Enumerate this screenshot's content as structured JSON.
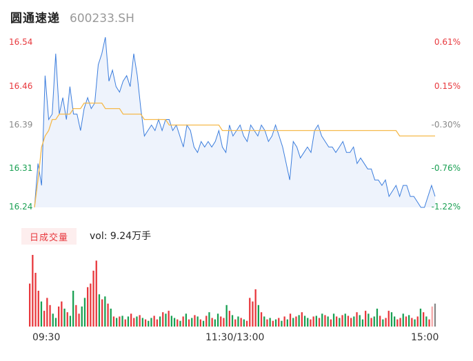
{
  "header": {
    "name": "圆通速递",
    "code": "600233.SH"
  },
  "colors": {
    "up": "#e8383d",
    "down": "#1aa053",
    "neutral": "#888888",
    "price_line": "#3b7ddd",
    "avg_line": "#f5b94a"
  },
  "chart_data": [
    {
      "type": "line",
      "title": "",
      "ylim": [
        16.24,
        16.54
      ],
      "y_ticks": [
        "16.54",
        "16.46",
        "16.39",
        "16.31",
        "16.24"
      ],
      "y_tick_values": [
        16.54,
        16.46,
        16.39,
        16.31,
        16.24
      ],
      "pct_ticks": [
        "0.61%",
        "0.15%",
        "-0.30%",
        "-0.76%",
        "-1.22%"
      ],
      "x_ticks": [
        "09:30",
        "11:30/13:00",
        "15:00"
      ],
      "series": [
        {
          "role": "price",
          "values": [
            16.24,
            16.32,
            16.28,
            16.48,
            16.4,
            16.41,
            16.52,
            16.41,
            16.44,
            16.4,
            16.46,
            16.41,
            16.41,
            16.38,
            16.42,
            16.44,
            16.42,
            16.43,
            16.5,
            16.52,
            16.55,
            16.47,
            16.49,
            16.46,
            16.45,
            16.47,
            16.48,
            16.46,
            16.52,
            16.48,
            16.42,
            16.37,
            16.38,
            16.39,
            16.38,
            16.4,
            16.38,
            16.4,
            16.4,
            16.38,
            16.39,
            16.37,
            16.35,
            16.39,
            16.38,
            16.35,
            16.34,
            16.36,
            16.35,
            16.36,
            16.35,
            16.36,
            16.38,
            16.35,
            16.34,
            16.39,
            16.37,
            16.38,
            16.39,
            16.37,
            16.36,
            16.39,
            16.38,
            16.37,
            16.39,
            16.38,
            16.36,
            16.37,
            16.39,
            16.37,
            16.35,
            16.32,
            16.29,
            16.36,
            16.35,
            16.33,
            16.34,
            16.35,
            16.34,
            16.38,
            16.39,
            16.37,
            16.36,
            16.35,
            16.35,
            16.34,
            16.35,
            16.36,
            16.34,
            16.34,
            16.35,
            16.32,
            16.33,
            16.32,
            16.31,
            16.31,
            16.29,
            16.29,
            16.28,
            16.29,
            16.26,
            16.27,
            16.28,
            16.26,
            16.28,
            16.28,
            16.26,
            16.26,
            16.25,
            16.24,
            16.24,
            16.26,
            16.28,
            16.26
          ]
        },
        {
          "role": "average",
          "values": [
            16.24,
            16.29,
            16.35,
            16.37,
            16.38,
            16.4,
            16.4,
            16.41,
            16.41,
            16.41,
            16.41,
            16.42,
            16.42,
            16.42,
            16.43,
            16.43,
            16.43,
            16.43,
            16.43,
            16.43,
            16.42,
            16.42,
            16.42,
            16.42,
            16.42,
            16.41,
            16.41,
            16.41,
            16.41,
            16.41,
            16.41,
            16.4,
            16.4,
            16.4,
            16.4,
            16.4,
            16.4,
            16.4,
            16.39,
            16.39,
            16.39,
            16.39,
            16.39,
            16.39,
            16.39,
            16.39,
            16.39,
            16.39,
            16.39,
            16.39,
            16.39,
            16.39,
            16.39,
            16.38,
            16.38,
            16.38,
            16.38,
            16.38,
            16.38,
            16.38,
            16.38,
            16.38,
            16.38,
            16.38,
            16.38,
            16.38,
            16.38,
            16.38,
            16.38,
            16.38,
            16.38,
            16.38,
            16.38,
            16.38,
            16.38,
            16.38,
            16.38,
            16.38,
            16.38,
            16.38,
            16.38,
            16.38,
            16.38,
            16.38,
            16.38,
            16.38,
            16.38,
            16.38,
            16.38,
            16.38,
            16.38,
            16.38,
            16.38,
            16.38,
            16.38,
            16.38,
            16.38,
            16.38,
            16.38,
            16.38,
            16.38,
            16.38,
            16.38,
            16.37,
            16.37,
            16.37,
            16.37,
            16.37,
            16.37,
            16.37,
            16.37,
            16.37,
            16.37,
            16.37
          ]
        }
      ]
    },
    {
      "type": "bar",
      "title": "日成交量",
      "ylabel": "",
      "values": [
        60,
        100,
        75,
        50,
        35,
        22,
        40,
        30,
        18,
        12,
        28,
        35,
        25,
        20,
        15,
        50,
        30,
        18,
        28,
        40,
        55,
        60,
        78,
        92,
        45,
        38,
        42,
        32,
        25,
        14,
        12,
        14,
        15,
        10,
        14,
        18,
        12,
        14,
        16,
        12,
        10,
        8,
        12,
        15,
        10,
        14,
        20,
        18,
        22,
        15,
        12,
        10,
        8,
        14,
        18,
        10,
        12,
        16,
        14,
        10,
        8,
        15,
        20,
        12,
        10,
        18,
        14,
        12,
        30,
        22,
        16,
        10,
        14,
        12,
        10,
        8,
        40,
        35,
        52,
        30,
        20,
        14,
        10,
        12,
        8,
        10,
        12,
        8,
        14,
        10,
        18,
        12,
        14,
        16,
        20,
        15,
        12,
        10,
        14,
        15,
        12,
        18,
        16,
        14,
        10,
        18,
        14,
        12,
        16,
        18,
        15,
        12,
        14,
        20,
        16,
        10,
        22,
        18,
        12,
        14,
        25,
        15,
        10,
        12,
        22,
        20,
        14,
        10,
        12,
        18,
        14,
        16,
        12,
        10,
        14,
        25,
        20,
        14,
        10,
        28,
        32
      ],
      "colors": [
        "up",
        "up",
        "up",
        "up",
        "down",
        "up",
        "up",
        "up",
        "down",
        "down",
        "up",
        "up",
        "down",
        "up",
        "down",
        "down",
        "up",
        "up",
        "down",
        "down",
        "up",
        "up",
        "up",
        "up",
        "down",
        "up",
        "down",
        "up",
        "down",
        "up",
        "down",
        "up",
        "down",
        "up",
        "down",
        "up",
        "up",
        "down",
        "up",
        "down",
        "up",
        "down",
        "down",
        "up",
        "up",
        "down",
        "up",
        "down",
        "up",
        "down",
        "down",
        "up",
        "down",
        "up",
        "down",
        "up",
        "down",
        "up",
        "down",
        "up",
        "down",
        "up",
        "down",
        "up",
        "down",
        "down",
        "up",
        "up",
        "down",
        "up",
        "down",
        "up",
        "down",
        "up",
        "down",
        "up",
        "up",
        "up",
        "up",
        "down",
        "up",
        "down",
        "up",
        "down",
        "up",
        "down",
        "up",
        "down",
        "up",
        "down",
        "up",
        "down",
        "up",
        "down",
        "up",
        "down",
        "down",
        "up",
        "up",
        "down",
        "up",
        "down",
        "up",
        "down",
        "up",
        "down",
        "up",
        "down",
        "up",
        "down",
        "up",
        "up",
        "down",
        "up",
        "down",
        "down",
        "up",
        "down",
        "up",
        "down",
        "down",
        "up",
        "down",
        "up",
        "up",
        "down",
        "down",
        "up",
        "up",
        "down",
        "up",
        "down",
        "up",
        "down",
        "up",
        "down",
        "up",
        "down",
        "up",
        "neutral"
      ]
    }
  ],
  "volume": {
    "title": "日成交量",
    "readout": "vol: 9.24万手"
  }
}
